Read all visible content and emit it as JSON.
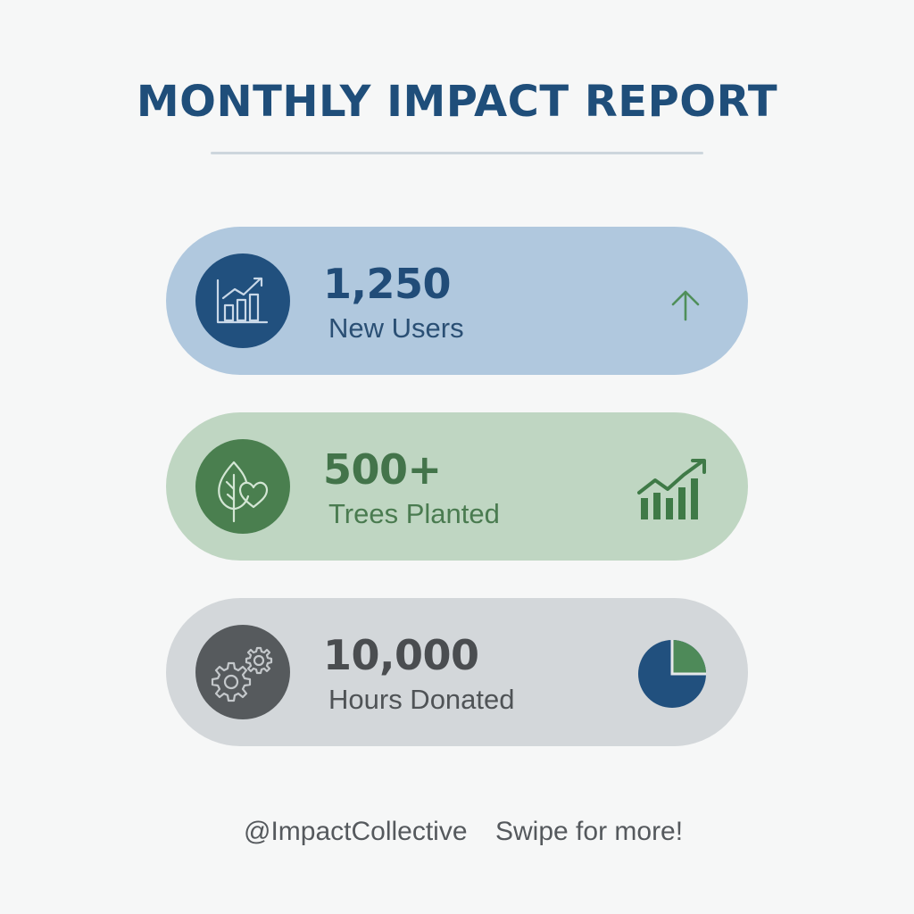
{
  "title": "MONTHLY IMPACT REPORT",
  "colors": {
    "title": "#1f4e7a",
    "users_card": "#b0c8de",
    "trees_card": "#bfd6c2",
    "hours_card": "#d3d7da",
    "blue_accent": "#21507e",
    "green_accent": "#4a7f4f",
    "gray_accent": "#565a5d"
  },
  "stats": [
    {
      "value": "1,250",
      "label": "New Users",
      "icon": "growth-chart-icon",
      "indicator": "arrow-up-icon"
    },
    {
      "value": "500+",
      "label": "Trees Planted",
      "icon": "leaf-heart-icon",
      "indicator": "rising-bar-chart-icon"
    },
    {
      "value": "10,000",
      "label": "Hours Donated",
      "icon": "gears-icon",
      "indicator": "pie-chart-icon"
    }
  ],
  "footer": {
    "handle": "@ImpactCollective",
    "cta": "Swipe for more!"
  }
}
